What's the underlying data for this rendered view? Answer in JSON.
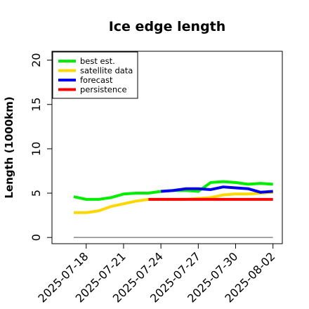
{
  "chart_data": {
    "type": "line",
    "title": "Ice edge length",
    "xlabel": "",
    "ylabel": "Length (1000km)",
    "ylim": [
      -0.7,
      21
    ],
    "yticks": [
      0,
      5,
      10,
      15,
      20
    ],
    "xlim": [
      "2025-07-15T06:00",
      "2025-08-02T18:00"
    ],
    "xticks": [
      {
        "date": "2025-07-18",
        "label": "2025-07-18",
        "color": "#000000"
      },
      {
        "date": "2025-07-21",
        "label": "2025-07-21",
        "color": "#000000"
      },
      {
        "date": "2025-07-24",
        "label": "2025-07-24",
        "color": "#228b22"
      },
      {
        "date": "2025-07-27",
        "label": "2025-07-27",
        "color": "#000000"
      },
      {
        "date": "2025-07-30",
        "label": "2025-07-30",
        "color": "#000000"
      },
      {
        "date": "2025-08-02",
        "label": "2025-08-02",
        "color": "#000000"
      }
    ],
    "grid": false,
    "legend_position": "top-left",
    "series": [
      {
        "name": "best est.",
        "color": "#00ee00",
        "points": [
          [
            "2025-07-17",
            4.6
          ],
          [
            "2025-07-18",
            4.3
          ],
          [
            "2025-07-19",
            4.3
          ],
          [
            "2025-07-20",
            4.5
          ],
          [
            "2025-07-21",
            4.9
          ],
          [
            "2025-07-22",
            5.0
          ],
          [
            "2025-07-23",
            5.0
          ],
          [
            "2025-07-24",
            5.2
          ],
          [
            "2025-07-25",
            5.3
          ],
          [
            "2025-07-26",
            5.3
          ],
          [
            "2025-07-27",
            5.2
          ],
          [
            "2025-07-28",
            6.2
          ],
          [
            "2025-07-29",
            6.3
          ],
          [
            "2025-07-30",
            6.2
          ],
          [
            "2025-07-31",
            6.0
          ],
          [
            "2025-08-01",
            6.1
          ],
          [
            "2025-08-02",
            6.0
          ]
        ]
      },
      {
        "name": "satellite data",
        "color": "#ffd700",
        "points": [
          [
            "2025-07-17",
            2.8
          ],
          [
            "2025-07-18",
            2.8
          ],
          [
            "2025-07-19",
            3.0
          ],
          [
            "2025-07-20",
            3.5
          ],
          [
            "2025-07-21",
            3.8
          ],
          [
            "2025-07-22",
            4.1
          ],
          [
            "2025-07-23",
            4.3
          ],
          [
            "2025-07-24",
            4.3
          ],
          [
            "2025-07-25",
            4.3
          ],
          [
            "2025-07-26",
            4.3
          ],
          [
            "2025-07-27",
            4.4
          ],
          [
            "2025-07-28",
            4.5
          ],
          [
            "2025-07-29",
            4.8
          ],
          [
            "2025-07-30",
            4.9
          ],
          [
            "2025-07-31",
            4.9
          ],
          [
            "2025-08-01",
            5.0
          ],
          [
            "2025-08-02",
            5.1
          ]
        ]
      },
      {
        "name": "forecast",
        "color": "#0000ee",
        "points": [
          [
            "2025-07-24",
            5.2
          ],
          [
            "2025-07-25",
            5.3
          ],
          [
            "2025-07-26",
            5.5
          ],
          [
            "2025-07-27",
            5.5
          ],
          [
            "2025-07-28",
            5.4
          ],
          [
            "2025-07-29",
            5.7
          ],
          [
            "2025-07-30",
            5.6
          ],
          [
            "2025-07-31",
            5.5
          ],
          [
            "2025-08-01",
            5.1
          ],
          [
            "2025-08-02",
            5.2
          ]
        ]
      },
      {
        "name": "persistence",
        "color": "#ff0000",
        "points": [
          [
            "2025-07-23",
            4.3
          ],
          [
            "2025-08-02",
            4.3
          ]
        ]
      }
    ],
    "reference_line": {
      "color": "#888888",
      "points": [
        [
          "2025-07-17",
          0
        ],
        [
          "2025-08-02",
          0
        ]
      ]
    }
  }
}
